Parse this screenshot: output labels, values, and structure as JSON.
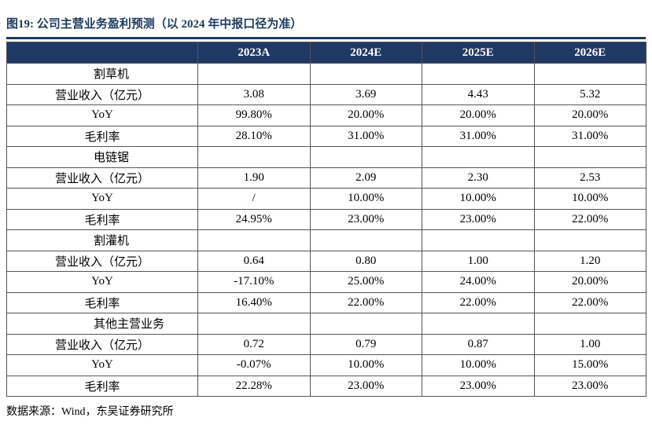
{
  "figure": {
    "title": "图19:  公司主营业务盈利预测（以 2024 年中报口径为准）",
    "source": "数据来源：Wind，东吴证券研究所"
  },
  "table": {
    "header": [
      "",
      "2023A",
      "2024E",
      "2025E",
      "2026E"
    ],
    "groups": [
      {
        "segment": "割草机",
        "rows": [
          {
            "metric": "营业收入（亿元）",
            "values": [
              "3.08",
              "3.69",
              "4.43",
              "5.32"
            ]
          },
          {
            "metric": "YoY",
            "values": [
              "99.80%",
              "20.00%",
              "20.00%",
              "20.00%"
            ]
          },
          {
            "metric": "毛利率",
            "values": [
              "28.10%",
              "31.00%",
              "31.00%",
              "31.00%"
            ]
          }
        ]
      },
      {
        "segment": "电链锯",
        "rows": [
          {
            "metric": "营业收入（亿元）",
            "values": [
              "1.90",
              "2.09",
              "2.30",
              "2.53"
            ]
          },
          {
            "metric": "YoY",
            "values": [
              "/",
              "10.00%",
              "10.00%",
              "10.00%"
            ]
          },
          {
            "metric": "毛利率",
            "values": [
              "24.95%",
              "23.00%",
              "23.00%",
              "22.00%"
            ]
          }
        ]
      },
      {
        "segment": "割灌机",
        "rows": [
          {
            "metric": "营业收入（亿元）",
            "values": [
              "0.64",
              "0.80",
              "1.00",
              "1.20"
            ]
          },
          {
            "metric": "YoY",
            "values": [
              "-17.10%",
              "25.00%",
              "24.00%",
              "20.00%"
            ]
          },
          {
            "metric": "毛利率",
            "values": [
              "16.40%",
              "22.00%",
              "22.00%",
              "22.00%"
            ]
          }
        ]
      },
      {
        "segment": "其他主营业务",
        "rows": [
          {
            "metric": "营业收入（亿元）",
            "values": [
              "0.72",
              "0.79",
              "0.87",
              "1.00"
            ]
          },
          {
            "metric": "YoY",
            "values": [
              "-0.07%",
              "10.00%",
              "10.00%",
              "15.00%"
            ]
          },
          {
            "metric": "毛利率",
            "values": [
              "22.28%",
              "23.00%",
              "23.00%",
              "23.00%"
            ]
          }
        ]
      }
    ]
  },
  "colors": {
    "header_bg": "#203864",
    "header_text": "#ffffff",
    "title_text": "#1f3a5f"
  }
}
